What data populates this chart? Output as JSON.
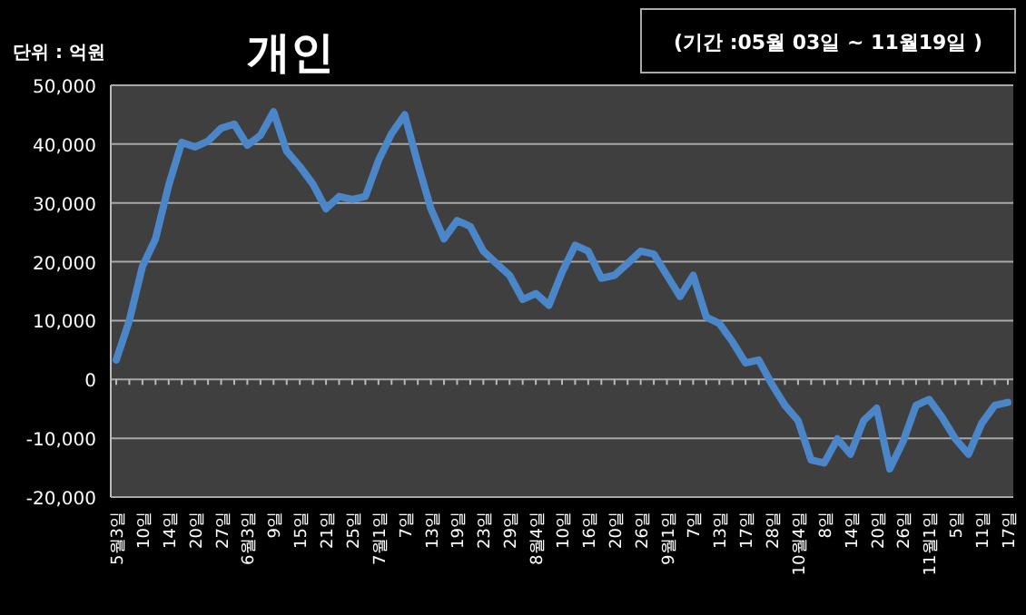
{
  "chart_data": {
    "type": "line",
    "title": "개인",
    "annotations": [
      "단위 : 억원",
      "(기간 :05월 03일 ~ 11월19일 )"
    ],
    "categories": [
      "5월3일",
      null,
      "10일",
      null,
      "14일",
      null,
      "20일",
      null,
      "27일",
      null,
      "6월3일",
      null,
      "9일",
      null,
      "15일",
      null,
      "21일",
      null,
      "25일",
      null,
      "7월1일",
      null,
      "7일",
      null,
      "13일",
      null,
      "19일",
      null,
      "23일",
      null,
      "29일",
      null,
      "8월4일",
      null,
      "10일",
      null,
      "16일",
      null,
      "20일",
      null,
      "26일",
      null,
      "9월1일",
      null,
      "7일",
      null,
      "13일",
      null,
      "17일",
      null,
      "28일",
      null,
      "10월4일",
      null,
      "8일",
      null,
      "14일",
      null,
      "20일",
      null,
      "26일",
      null,
      "11월1일",
      null,
      "5일",
      null,
      "11일",
      null,
      "17일"
    ],
    "series": [
      {
        "color": "#4a86c8",
        "values": [
          3300,
          10000,
          19200,
          23900,
          33000,
          40300,
          39500,
          40500,
          42700,
          43400,
          39800,
          41500,
          45500,
          38800,
          36200,
          33200,
          29000,
          31100,
          30600,
          31100,
          37200,
          41800,
          45000,
          36700,
          29000,
          23900,
          27000,
          26000,
          21800,
          19700,
          17700,
          13600,
          14600,
          12600,
          18200,
          22800,
          21800,
          17200,
          17700,
          19700,
          21800,
          21300,
          17700,
          14100,
          17700,
          10600,
          9500,
          6400,
          2800,
          3300,
          -800,
          -4400,
          -7000,
          -13700,
          -14200,
          -10100,
          -12700,
          -7000,
          -4900,
          -15200,
          -10600,
          -4400,
          -3400,
          -6500,
          -10100,
          -12700,
          -7500,
          -4400,
          -3900
        ]
      }
    ],
    "ylim": [
      -20000,
      50000
    ],
    "yticks": [
      {
        "value": -20000,
        "label": "-20,000"
      },
      {
        "value": -10000,
        "label": "-10,000"
      },
      0,
      {
        "value": 10000,
        "label": "10,000"
      },
      {
        "value": 20000,
        "label": "20,000"
      },
      {
        "value": 30000,
        "label": "30,000"
      },
      {
        "value": 40000,
        "label": "40,000"
      },
      {
        "value": 50000,
        "label": "50,000"
      }
    ],
    "grid": "y",
    "line_style": "solid",
    "marker": "none"
  }
}
